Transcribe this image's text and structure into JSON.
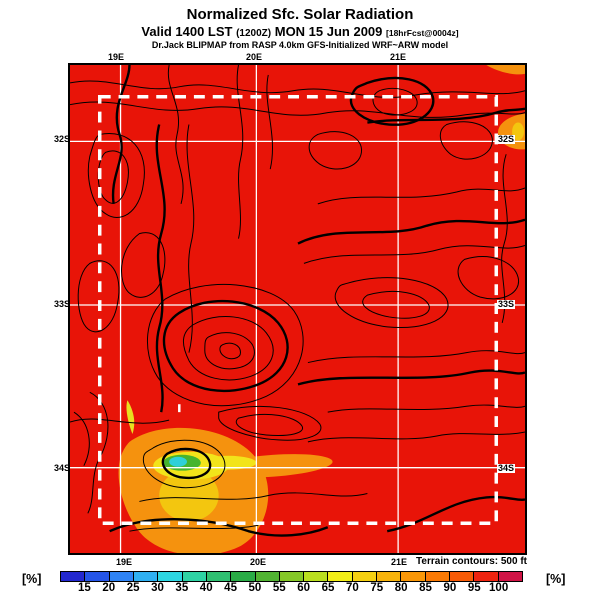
{
  "header": {
    "title": "Normalized Sfc. Solar Radiation",
    "valid_prefix": "Valid 1400 LST",
    "valid_zulu": "(1200Z)",
    "valid_date": "MON 15 Jun 2009",
    "fcst_note": "[18hrFcst@0004z]",
    "model_line": "Dr.Jack BLIPMAP from RASP 4.0km GFS-Initialized WRF~ARW model"
  },
  "map": {
    "fill_color": "#e81408",
    "terrain_note": "Terrain contours: 500 ft",
    "lat_labels": [
      "32S",
      "33S",
      "34S"
    ],
    "lon_labels": [
      "19E",
      "20E",
      "21E"
    ],
    "features": {
      "low_radiation_blob": "cyan-green-yellow-orange minimum near 19.4E 34.2S",
      "orange_patch_right_edge": "reduced radiation at eastern boundary near 32S",
      "domain_box": "white dashed inner model domain"
    }
  },
  "colorbar": {
    "unit": "[%]",
    "tick_labels": [
      "15",
      "20",
      "25",
      "30",
      "35",
      "40",
      "45",
      "50",
      "55",
      "60",
      "65",
      "70",
      "75",
      "80",
      "85",
      "90",
      "95",
      "100"
    ],
    "colors": [
      "#2328cf",
      "#2555e8",
      "#2e83f5",
      "#2fb0f2",
      "#2cd6e2",
      "#2ed3a4",
      "#2fbf71",
      "#2aab46",
      "#51b332",
      "#85c728",
      "#badf1f",
      "#f2ee17",
      "#f5d011",
      "#f7b30c",
      "#f99708",
      "#fa7a05",
      "#f75b07",
      "#ee2410",
      "#d01446"
    ]
  },
  "chart_data": {
    "type": "heatmap",
    "title": "Normalized Sfc. Solar Radiation",
    "units": "%",
    "scale_min": 15,
    "scale_max": 100,
    "scale_step": 5,
    "x_axis_labels": [
      "19E",
      "20E",
      "21E"
    ],
    "y_axis_labels": [
      "32S",
      "33S",
      "34S"
    ],
    "dominant_value": "95-100",
    "legend_position": "bottom"
  }
}
